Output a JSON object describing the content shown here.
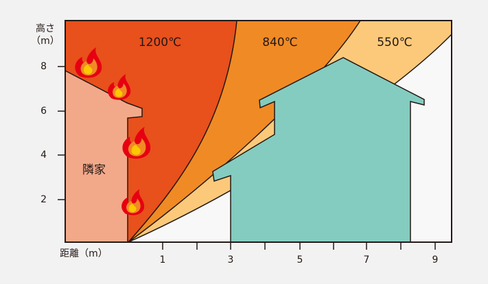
{
  "y_axis": {
    "title": "高さ",
    "unit": "（m）",
    "ticks": [
      "2",
      "4",
      "6",
      "8"
    ]
  },
  "x_axis": {
    "title": "距離（m）",
    "ticks": [
      "1",
      "3",
      "5",
      "7",
      "9"
    ]
  },
  "zones": [
    {
      "label": "1200℃"
    },
    {
      "label": "840℃"
    },
    {
      "label": "550℃"
    }
  ],
  "neighbor": {
    "label": "隣家"
  }
}
